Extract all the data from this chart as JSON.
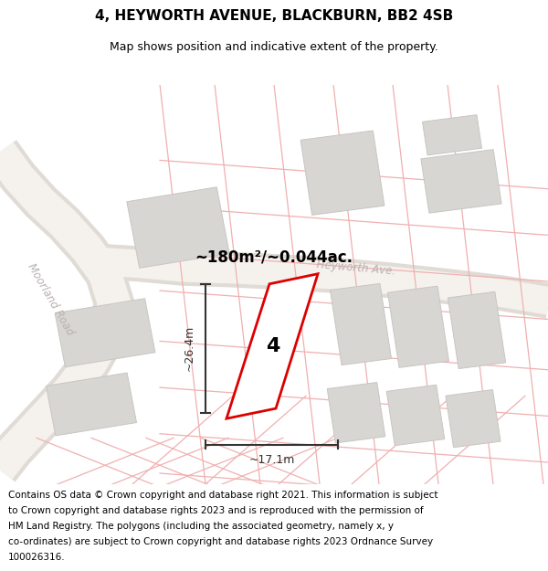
{
  "title_line1": "4, HEYWORTH AVENUE, BLACKBURN, BB2 4SB",
  "title_line2": "Map shows position and indicative extent of the property.",
  "footer_lines": [
    "Contains OS data © Crown copyright and database right 2021. This information is subject",
    "to Crown copyright and database rights 2023 and is reproduced with the permission of",
    "HM Land Registry. The polygons (including the associated geometry, namely x, y",
    "co-ordinates) are subject to Crown copyright and database rights 2023 Ordnance Survey",
    "100026316."
  ],
  "area_label": "~180m²/~0.044ac.",
  "width_label": "~17.1m",
  "height_label": "~26.4m",
  "plot_number": "4",
  "map_bg": "#f2eeea",
  "road_fill": "#f8f6f4",
  "road_edge": "#e8e2dc",
  "building_fc": "#d8d6d2",
  "building_ec": "#c8c6c2",
  "plot_fill": "#ffffff",
  "plot_edge": "#dd0000",
  "boundary_color": "#f0b0b0",
  "road_label_color": "#b8b2b0",
  "dim_color": "#333333",
  "title_fontsize": 11,
  "subtitle_fontsize": 9,
  "footer_fontsize": 7.5,
  "area_fontsize": 12,
  "plot_num_fontsize": 16,
  "dim_fontsize": 9,
  "road_fontsize": 8.5
}
